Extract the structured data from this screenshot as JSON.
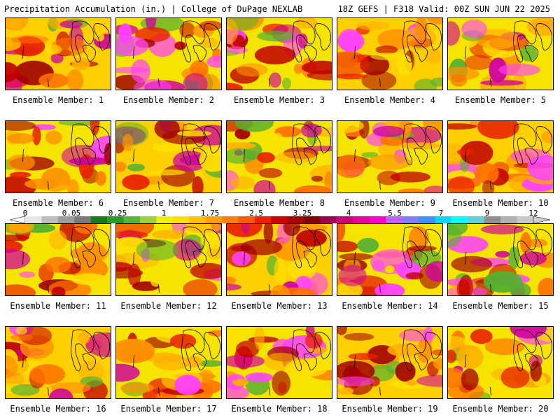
{
  "header": {
    "title": "Precipitation Accumulation (in.) | College of DuPage NEXLAB",
    "run_info": "18Z GEFS | F318 Valid: 00Z SUN JUN 22 2025"
  },
  "legend": {
    "ticks": [
      "0",
      "0.05",
      "0.25",
      "1",
      "1.75",
      "2.5",
      "3.25",
      "4",
      "5.5",
      "7",
      "9",
      "12"
    ],
    "colors": [
      "#e6e6e6",
      "#bdbdbd",
      "#9c9c9c",
      "#7a7a7a",
      "#1a7a1a",
      "#2a9a2a",
      "#57b33a",
      "#9dd13a",
      "#f0f000",
      "#ffe000",
      "#ffc000",
      "#ffa000",
      "#ff8000",
      "#ff5a00",
      "#f02000",
      "#cc0000",
      "#a80000",
      "#800000",
      "#a00050",
      "#c8007a",
      "#e600a0",
      "#ff00d0",
      "#c060ff",
      "#8080ff",
      "#4090ff",
      "#00d8ff",
      "#00ffff",
      "#60d0d0",
      "#909090",
      "#b0b0b0",
      "#c8c8c8"
    ]
  },
  "members": [
    {
      "label": "Ensemble Member: 1"
    },
    {
      "label": "Ensemble Member: 2"
    },
    {
      "label": "Ensemble Member: 3"
    },
    {
      "label": "Ensemble Member: 4"
    },
    {
      "label": "Ensemble Member: 5"
    },
    {
      "label": "Ensemble Member: 6"
    },
    {
      "label": "Ensemble Member: 7"
    },
    {
      "label": "Ensemble Member: 8"
    },
    {
      "label": "Ensemble Member: 9"
    },
    {
      "label": "Ensemble Member: 10"
    },
    {
      "label": "Ensemble Member: 11"
    },
    {
      "label": "Ensemble Member: 12"
    },
    {
      "label": "Ensemble Member: 13"
    },
    {
      "label": "Ensemble Member: 14"
    },
    {
      "label": "Ensemble Member: 15"
    },
    {
      "label": "Ensemble Member: 16"
    },
    {
      "label": "Ensemble Member: 17"
    },
    {
      "label": "Ensemble Member: 18"
    },
    {
      "label": "Ensemble Member: 19"
    },
    {
      "label": "Ensemble Member: 20"
    }
  ]
}
